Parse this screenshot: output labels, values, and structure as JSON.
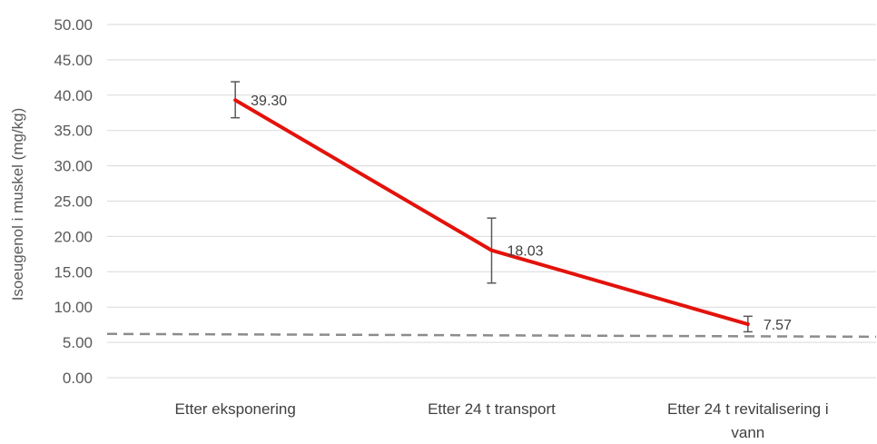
{
  "chart_data": {
    "type": "line",
    "title": "",
    "xlabel": "",
    "ylabel": "Isoeugenol i muskel (mg/kg)",
    "ylim": [
      0,
      50
    ],
    "yticks": [
      "0.00",
      "5.00",
      "10.00",
      "15.00",
      "20.00",
      "25.00",
      "30.00",
      "35.00",
      "40.00",
      "45.00",
      "50.00"
    ],
    "categories": [
      [
        "Etter eksponering"
      ],
      [
        "Etter 24 t transport"
      ],
      [
        "Etter 24 t revitalisering i",
        "vann"
      ]
    ],
    "series": [
      {
        "values": [
          39.3,
          18.03,
          7.57
        ],
        "data_labels": [
          "39.30",
          "18.03",
          "7.57"
        ],
        "error_low": [
          36.8,
          13.4,
          6.5
        ],
        "error_high": [
          41.9,
          22.6,
          8.7
        ],
        "color": "#e3120b"
      }
    ],
    "reference_line": {
      "y_start": 6.2,
      "y_end": 5.8,
      "style": "dashed",
      "color": "#8c8c8c"
    },
    "grid": true,
    "gridline_color": "#d9d9d9",
    "legend": "none"
  }
}
